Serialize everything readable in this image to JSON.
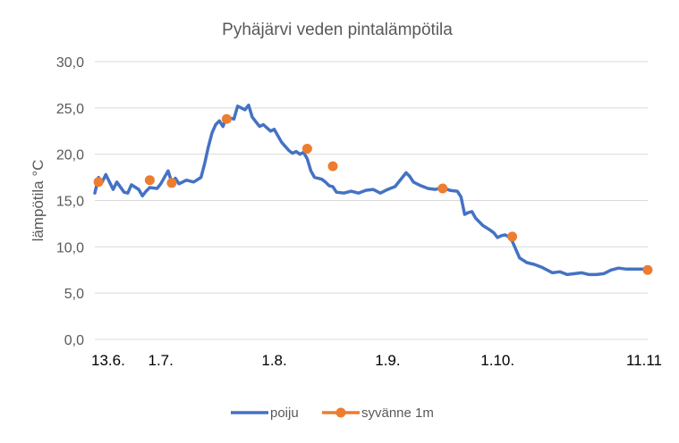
{
  "chart_data": {
    "type": "line",
    "title": "Pyhäjärvi veden pintalämpötila",
    "ylabel": "lämpötila °C",
    "xlabel": "",
    "ylim": [
      0,
      30
    ],
    "yticks": [
      0,
      5,
      10,
      15,
      20,
      25,
      30
    ],
    "ytick_labels": [
      "0,0",
      "5,0",
      "10,0",
      "15,0",
      "20,0",
      "25,0",
      "30,0"
    ],
    "xlim": [
      "2020-06-13",
      "2020-11-11"
    ],
    "x_tick_dates": [
      "2020-06-13",
      "2020-07-01",
      "2020-08-01",
      "2020-09-01",
      "2020-10-01",
      "2020-11-11"
    ],
    "x_tick_labels": [
      "13.6.",
      "1.7.",
      "1.8.",
      "1.9.",
      "1.10.",
      "11.11"
    ],
    "grid": "horizontal",
    "legend_position": "bottom",
    "series": [
      {
        "name": "poiju",
        "color": "#4472c4",
        "marker": "none",
        "x": [
          "2020-06-13",
          "2020-06-14",
          "2020-06-15",
          "2020-06-16",
          "2020-06-18",
          "2020-06-19",
          "2020-06-21",
          "2020-06-22",
          "2020-06-23",
          "2020-06-25",
          "2020-06-26",
          "2020-06-27",
          "2020-06-28",
          "2020-06-30",
          "2020-07-01",
          "2020-07-03",
          "2020-07-04",
          "2020-07-05",
          "2020-07-06",
          "2020-07-07",
          "2020-07-08",
          "2020-07-10",
          "2020-07-12",
          "2020-07-13",
          "2020-07-14",
          "2020-07-15",
          "2020-07-16",
          "2020-07-17",
          "2020-07-18",
          "2020-07-19",
          "2020-07-21",
          "2020-07-22",
          "2020-07-23",
          "2020-07-24",
          "2020-07-25",
          "2020-07-26",
          "2020-07-27",
          "2020-07-28",
          "2020-07-29",
          "2020-07-31",
          "2020-08-01",
          "2020-08-03",
          "2020-08-05",
          "2020-08-06",
          "2020-08-07",
          "2020-08-08",
          "2020-08-09",
          "2020-08-10",
          "2020-08-11",
          "2020-08-12",
          "2020-08-14",
          "2020-08-15",
          "2020-08-16",
          "2020-08-17",
          "2020-08-18",
          "2020-08-20",
          "2020-08-22",
          "2020-08-24",
          "2020-08-26",
          "2020-08-28",
          "2020-08-30",
          "2020-09-01",
          "2020-09-03",
          "2020-09-05",
          "2020-09-06",
          "2020-09-07",
          "2020-09-08",
          "2020-09-10",
          "2020-09-12",
          "2020-09-14",
          "2020-09-16",
          "2020-09-18",
          "2020-09-20",
          "2020-09-21",
          "2020-09-22",
          "2020-09-23",
          "2020-09-24",
          "2020-09-25",
          "2020-09-27",
          "2020-09-29",
          "2020-09-30",
          "2020-10-01",
          "2020-10-02",
          "2020-10-03",
          "2020-10-04",
          "2020-10-05",
          "2020-10-07",
          "2020-10-09",
          "2020-10-11",
          "2020-10-13",
          "2020-10-15",
          "2020-10-16",
          "2020-10-18",
          "2020-10-20",
          "2020-10-22",
          "2020-10-24",
          "2020-10-26",
          "2020-10-28",
          "2020-10-30",
          "2020-11-01",
          "2020-11-03",
          "2020-11-05",
          "2020-11-08",
          "2020-11-11"
        ],
        "y": [
          15.8,
          17.5,
          17.0,
          17.8,
          16.2,
          17.0,
          15.9,
          15.8,
          16.7,
          16.2,
          15.5,
          16.0,
          16.4,
          16.3,
          16.8,
          18.2,
          17.0,
          17.4,
          16.8,
          17.0,
          17.2,
          17.0,
          17.5,
          19.0,
          20.8,
          22.3,
          23.2,
          23.6,
          23.0,
          24.0,
          23.8,
          25.2,
          25.0,
          24.8,
          25.3,
          24.0,
          23.5,
          23.0,
          23.2,
          22.5,
          22.7,
          21.3,
          20.4,
          20.1,
          20.3,
          20.0,
          20.2,
          19.5,
          18.2,
          17.5,
          17.3,
          17.0,
          16.6,
          16.5,
          15.9,
          15.8,
          16.0,
          15.8,
          16.1,
          16.2,
          15.8,
          16.2,
          16.5,
          17.5,
          18.0,
          17.6,
          17.0,
          16.6,
          16.3,
          16.2,
          16.4,
          16.1,
          16.0,
          15.4,
          13.5,
          13.7,
          13.8,
          13.1,
          12.3,
          11.8,
          11.5,
          11.0,
          11.2,
          11.3,
          11.1,
          10.6,
          8.8,
          8.3,
          8.1,
          7.8,
          7.4,
          7.2,
          7.3,
          7.0,
          7.1,
          7.2,
          7.0,
          7.0,
          7.1,
          7.5,
          7.7,
          7.6,
          7.6,
          7.6
        ]
      },
      {
        "name": "syvänne 1m",
        "color": "#ed7d31",
        "marker": "circle",
        "x": [
          "2020-06-14",
          "2020-06-28",
          "2020-07-04",
          "2020-07-19",
          "2020-08-10",
          "2020-08-17",
          "2020-09-16",
          "2020-10-05",
          "2020-11-11"
        ],
        "y": [
          17.0,
          17.2,
          16.9,
          23.8,
          20.6,
          18.7,
          16.3,
          11.1,
          7.5
        ]
      }
    ]
  }
}
